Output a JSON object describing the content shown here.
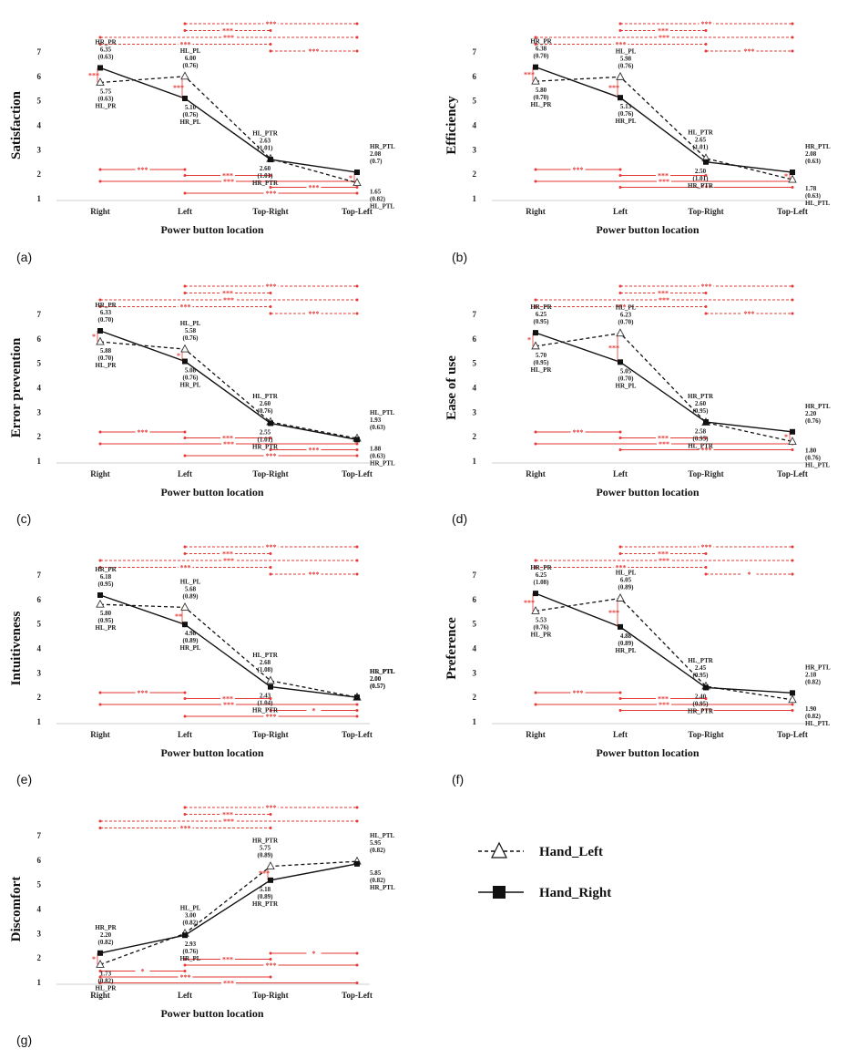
{
  "legend": {
    "hand_left": "Hand_Left",
    "hand_right": "Hand_Right"
  },
  "chart_data": [
    {
      "type": "line",
      "panel_label": "(a)",
      "ylabel": "Satisfaction",
      "xlabel": "Power button location",
      "categories": [
        "Right",
        "Left",
        "Top-Right",
        "Top-Left"
      ],
      "yticks": [
        "1",
        "2",
        "3",
        "4",
        "5",
        "6",
        "7"
      ],
      "ylim": [
        1,
        7
      ],
      "series": [
        {
          "name": "Hand_Left",
          "values": [
            5.75,
            6.0,
            2.63,
            1.65
          ],
          "sd": [
            "(0.63)",
            "(0.76)",
            "(1.01)",
            "(0.82)"
          ],
          "point_labels": [
            "HL_PR",
            "HL_PL",
            "HL_PTR",
            "HL_PTL"
          ],
          "value_labels": [
            "5.75",
            "6.00",
            "2.63",
            "1.65"
          ]
        },
        {
          "name": "Hand_Right",
          "values": [
            6.35,
            5.1,
            2.6,
            2.08
          ],
          "sd": [
            "(0.63)",
            "(0.76)",
            "(1.01)",
            "(0.7)"
          ],
          "point_labels": [
            "HR_PR",
            "HR_PL",
            "HR_PTR",
            "HR_PTL"
          ],
          "value_labels": [
            "6.35",
            "5.10",
            "2.60",
            "2.08"
          ]
        }
      ],
      "significance": {
        "top": [
          {
            "from": 1,
            "to": 3,
            "mark": "***",
            "style": "dashed"
          },
          {
            "from": 1,
            "to": 2,
            "mark": "***",
            "style": "dashed"
          },
          {
            "from": 0,
            "to": 3,
            "mark": "***",
            "style": "dashed"
          },
          {
            "from": 0,
            "to": 2,
            "mark": "***",
            "style": "dashed"
          },
          {
            "from": 2,
            "to": 3,
            "mark": "***",
            "style": "dashed"
          }
        ],
        "bottom": [
          {
            "from": 0,
            "to": 1,
            "mark": "***"
          },
          {
            "from": 1,
            "to": 2,
            "mark": "***"
          },
          {
            "from": 0,
            "to": 3,
            "mark": "***"
          },
          {
            "from": 2,
            "to": 3,
            "mark": "***"
          },
          {
            "from": 1,
            "to": 3,
            "mark": "***"
          }
        ],
        "within": [
          {
            "category": 0,
            "mark": "***"
          },
          {
            "category": 1,
            "mark": "***"
          },
          {
            "category": 3,
            "mark": "*"
          }
        ]
      }
    },
    {
      "type": "line",
      "panel_label": "(b)",
      "ylabel": "Efficiency",
      "xlabel": "Power button location",
      "categories": [
        "Right",
        "Left",
        "Top-Right",
        "Top-Left"
      ],
      "yticks": [
        "1",
        "2",
        "3",
        "4",
        "5",
        "6",
        "7"
      ],
      "ylim": [
        1,
        7
      ],
      "series": [
        {
          "name": "Hand_Left",
          "values": [
            5.8,
            5.98,
            2.65,
            1.78
          ],
          "sd": [
            "(0.70)",
            "(0.76)",
            "(1.01)",
            "(0.63)"
          ],
          "point_labels": [
            "HL_PR",
            "HL_PL",
            "HL_PTR",
            "HL_PTL"
          ],
          "value_labels": [
            "5.80",
            "5.98",
            "2.65",
            "1.78"
          ]
        },
        {
          "name": "Hand_Right",
          "values": [
            6.38,
            5.13,
            2.5,
            2.08
          ],
          "sd": [
            "(0.70)",
            "(0.76)",
            "(1.01)",
            "(0.63)"
          ],
          "point_labels": [
            "HR_PR",
            "HR_PL",
            "HR_PTR",
            "HR_PTL"
          ],
          "value_labels": [
            "6.38",
            "5.13",
            "2.50",
            "2.08"
          ]
        }
      ],
      "significance": {
        "top": [
          {
            "from": 1,
            "to": 3,
            "mark": "***",
            "style": "dashed"
          },
          {
            "from": 1,
            "to": 2,
            "mark": "***",
            "style": "dashed"
          },
          {
            "from": 0,
            "to": 3,
            "mark": "***",
            "style": "dashed"
          },
          {
            "from": 0,
            "to": 2,
            "mark": "***",
            "style": "dashed"
          },
          {
            "from": 2,
            "to": 3,
            "mark": "***",
            "style": "dashed"
          }
        ],
        "bottom": [
          {
            "from": 0,
            "to": 1,
            "mark": "***"
          },
          {
            "from": 1,
            "to": 2,
            "mark": "***"
          },
          {
            "from": 0,
            "to": 3,
            "mark": "***"
          },
          {
            "from": 1,
            "to": 3,
            "mark": "***"
          }
        ],
        "within": [
          {
            "category": 0,
            "mark": "***"
          },
          {
            "category": 1,
            "mark": "***"
          },
          {
            "category": 3,
            "mark": "*"
          }
        ]
      }
    },
    {
      "type": "line",
      "panel_label": "(c)",
      "ylabel": "Error prevention",
      "xlabel": "Power button location",
      "categories": [
        "Right",
        "Left",
        "Top-Right",
        "Top-Left"
      ],
      "yticks": [
        "1",
        "2",
        "3",
        "4",
        "5",
        "6",
        "7"
      ],
      "ylim": [
        1,
        7
      ],
      "series": [
        {
          "name": "Hand_Left",
          "values": [
            5.88,
            5.58,
            2.6,
            1.93
          ],
          "sd": [
            "(0.70)",
            "(0.76)",
            "(0.76)",
            "(0.63)"
          ],
          "point_labels": [
            "HL_PR",
            "HL_PL",
            "HL_PTR",
            "HL_PTL"
          ],
          "value_labels": [
            "5.88",
            "5.58",
            "2.60",
            "1.93"
          ]
        },
        {
          "name": "Hand_Right",
          "values": [
            6.33,
            5.08,
            2.55,
            1.88
          ],
          "sd": [
            "(0.70)",
            "(0.76)",
            "(1.01)",
            "(0.63)"
          ],
          "point_labels": [
            "HR_PR",
            "HR_PL",
            "HR_PTR",
            "HR_PTL"
          ],
          "value_labels": [
            "6.33",
            "5.08",
            "2.55",
            "1.88"
          ]
        }
      ],
      "significance": {
        "top": [
          {
            "from": 1,
            "to": 3,
            "mark": "***",
            "style": "dashed"
          },
          {
            "from": 1,
            "to": 2,
            "mark": "***",
            "style": "dashed"
          },
          {
            "from": 0,
            "to": 3,
            "mark": "***",
            "style": "dashed"
          },
          {
            "from": 0,
            "to": 2,
            "mark": "***",
            "style": "dashed"
          },
          {
            "from": 2,
            "to": 3,
            "mark": "***",
            "style": "dashed"
          }
        ],
        "bottom": [
          {
            "from": 0,
            "to": 1,
            "mark": "***"
          },
          {
            "from": 1,
            "to": 2,
            "mark": "***"
          },
          {
            "from": 0,
            "to": 3,
            "mark": "***"
          },
          {
            "from": 2,
            "to": 3,
            "mark": "***"
          },
          {
            "from": 1,
            "to": 3,
            "mark": "***"
          }
        ],
        "within": [
          {
            "category": 0,
            "mark": "*"
          },
          {
            "category": 1,
            "mark": "*"
          }
        ]
      }
    },
    {
      "type": "line",
      "panel_label": "(d)",
      "ylabel": "Ease of use",
      "xlabel": "Power button location",
      "categories": [
        "Right",
        "Left",
        "Top-Right",
        "Top-Left"
      ],
      "yticks": [
        "1",
        "2",
        "3",
        "4",
        "5",
        "6",
        "7"
      ],
      "ylim": [
        1,
        7
      ],
      "series": [
        {
          "name": "Hand_Left",
          "values": [
            5.7,
            6.23,
            2.58,
            1.8
          ],
          "sd": [
            "(0.95)",
            "(0.70)",
            "(0.95)",
            "(0.76)"
          ],
          "point_labels": [
            "HL_PR",
            "HL_PL",
            "HL_PTR",
            "HL_PTL"
          ],
          "value_labels": [
            "5.70",
            "6.23",
            "2.58",
            "1.80"
          ]
        },
        {
          "name": "Hand_Right",
          "values": [
            6.25,
            5.05,
            2.6,
            2.2
          ],
          "sd": [
            "(0.95)",
            "(0.70)",
            "(0.95)",
            "(0.76)"
          ],
          "point_labels": [
            "HR_PR",
            "HR_PL",
            "HR_PTR",
            "HR_PTL"
          ],
          "value_labels": [
            "6.25",
            "5.05",
            "2.60",
            "2.20"
          ]
        }
      ],
      "significance": {
        "top": [
          {
            "from": 1,
            "to": 3,
            "mark": "***",
            "style": "dashed"
          },
          {
            "from": 1,
            "to": 2,
            "mark": "***",
            "style": "dashed"
          },
          {
            "from": 0,
            "to": 3,
            "mark": "***",
            "style": "dashed"
          },
          {
            "from": 0,
            "to": 2,
            "mark": "***",
            "style": "dashed"
          },
          {
            "from": 2,
            "to": 3,
            "mark": "***",
            "style": "dashed"
          }
        ],
        "bottom": [
          {
            "from": 0,
            "to": 1,
            "mark": "***"
          },
          {
            "from": 1,
            "to": 2,
            "mark": "***"
          },
          {
            "from": 0,
            "to": 3,
            "mark": "***"
          },
          {
            "from": 1,
            "to": 3,
            "mark": "***"
          }
        ],
        "within": [
          {
            "category": 0,
            "mark": "*"
          },
          {
            "category": 1,
            "mark": "***"
          },
          {
            "category": 3,
            "mark": "*"
          }
        ]
      }
    },
    {
      "type": "line",
      "panel_label": "(e)",
      "ylabel": "Intuitiveness",
      "xlabel": "Power button location",
      "categories": [
        "Right",
        "Left",
        "Top-Right",
        "Top-Left"
      ],
      "yticks": [
        "1",
        "2",
        "3",
        "4",
        "5",
        "6",
        "7"
      ],
      "ylim": [
        1,
        7
      ],
      "series": [
        {
          "name": "Hand_Left",
          "values": [
            5.8,
            5.68,
            2.68,
            2.0
          ],
          "sd": [
            "(0.95)",
            "(0.89)",
            "(1.08)",
            "(0.57)"
          ],
          "point_labels": [
            "HL_PR",
            "HL_PL",
            "HL_PTR",
            "HL_PTL"
          ],
          "value_labels": [
            "5.80",
            "5.68",
            "2.68",
            "2.00"
          ]
        },
        {
          "name": "Hand_Right",
          "values": [
            6.18,
            4.98,
            2.43,
            2.0
          ],
          "sd": [
            "(0.95)",
            "(0.89)",
            "(1.04)",
            "(0.57)"
          ],
          "point_labels": [
            "HR_PR",
            "HR_PL",
            "HR_PTR",
            "HR_PTL"
          ],
          "value_labels": [
            "6.18",
            "4.98",
            "2.43",
            "2.00"
          ]
        }
      ],
      "significance": {
        "top": [
          {
            "from": 1,
            "to": 3,
            "mark": "***",
            "style": "dashed"
          },
          {
            "from": 1,
            "to": 2,
            "mark": "***",
            "style": "dashed"
          },
          {
            "from": 0,
            "to": 3,
            "mark": "***",
            "style": "dashed"
          },
          {
            "from": 0,
            "to": 2,
            "mark": "***",
            "style": "dashed"
          },
          {
            "from": 2,
            "to": 3,
            "mark": "***",
            "style": "dashed"
          }
        ],
        "bottom": [
          {
            "from": 0,
            "to": 1,
            "mark": "***"
          },
          {
            "from": 1,
            "to": 2,
            "mark": "***"
          },
          {
            "from": 0,
            "to": 3,
            "mark": "***"
          },
          {
            "from": 2,
            "to": 3,
            "mark": "*"
          },
          {
            "from": 1,
            "to": 3,
            "mark": "***"
          }
        ],
        "within": [
          {
            "category": 1,
            "mark": "**"
          }
        ]
      }
    },
    {
      "type": "line",
      "panel_label": "(f)",
      "ylabel": "Preference",
      "xlabel": "Power button location",
      "categories": [
        "Right",
        "Left",
        "Top-Right",
        "Top-Left"
      ],
      "yticks": [
        "1",
        "2",
        "3",
        "4",
        "5",
        "6",
        "7"
      ],
      "ylim": [
        1,
        7
      ],
      "series": [
        {
          "name": "Hand_Left",
          "values": [
            5.53,
            6.05,
            2.45,
            1.9
          ],
          "sd": [
            "(0.76)",
            "(0.89)",
            "(0.95)",
            "(0.82)"
          ],
          "point_labels": [
            "HL_PR",
            "HL_PL",
            "HL_PTR",
            "HL_PTL"
          ],
          "value_labels": [
            "5.53",
            "6.05",
            "2.45",
            "1.90"
          ]
        },
        {
          "name": "Hand_Right",
          "values": [
            6.25,
            4.88,
            2.4,
            2.18
          ],
          "sd": [
            "(1.08)",
            "(0.89)",
            "(0.95)",
            "(0.82)"
          ],
          "point_labels": [
            "HR_PR",
            "HR_PL",
            "HR_PTR",
            "HR_PTL"
          ],
          "value_labels": [
            "6.25",
            "4.88",
            "2.40",
            "2.18"
          ]
        }
      ],
      "significance": {
        "top": [
          {
            "from": 1,
            "to": 3,
            "mark": "***",
            "style": "dashed"
          },
          {
            "from": 1,
            "to": 2,
            "mark": "***",
            "style": "dashed"
          },
          {
            "from": 0,
            "to": 3,
            "mark": "***",
            "style": "dashed"
          },
          {
            "from": 0,
            "to": 2,
            "mark": "***",
            "style": "dashed"
          },
          {
            "from": 2,
            "to": 3,
            "mark": "*",
            "style": "dashed"
          }
        ],
        "bottom": [
          {
            "from": 0,
            "to": 1,
            "mark": "***"
          },
          {
            "from": 1,
            "to": 2,
            "mark": "***"
          },
          {
            "from": 0,
            "to": 3,
            "mark": "***"
          },
          {
            "from": 1,
            "to": 3,
            "mark": "***"
          }
        ],
        "within": [
          {
            "category": 0,
            "mark": "***"
          },
          {
            "category": 1,
            "mark": "***"
          }
        ]
      }
    },
    {
      "type": "line",
      "panel_label": "(g)",
      "ylabel": "Discomfort",
      "xlabel": "Power button location",
      "categories": [
        "Right",
        "Left",
        "Top-Right",
        "Top-Left"
      ],
      "yticks": [
        "1",
        "2",
        "3",
        "4",
        "5",
        "6",
        "7"
      ],
      "ylim": [
        1,
        7
      ],
      "series": [
        {
          "name": "Hand_Left",
          "values": [
            1.73,
            3.0,
            5.75,
            5.95
          ],
          "sd": [
            "(0.82)",
            "(0.82)",
            "(0.89)",
            "(0.82)"
          ],
          "point_labels": [
            "HL_PR",
            "HL_PL",
            "HR_PTR",
            "HL_PTL"
          ],
          "value_labels": [
            "1.73",
            "3.00",
            "5.75",
            "5.95"
          ]
        },
        {
          "name": "Hand_Right",
          "values": [
            2.2,
            2.93,
            5.18,
            5.85
          ],
          "sd": [
            "(0.82)",
            "(0.76)",
            "(0.89)",
            "(0.82)"
          ],
          "point_labels": [
            "HR_PR",
            "HR_PL",
            "HR_PTR",
            "HR_PTL"
          ],
          "value_labels": [
            "2.20",
            "2.93",
            "5.18",
            "5.85"
          ]
        }
      ],
      "significance": {
        "top": [
          {
            "from": 1,
            "to": 3,
            "mark": "***",
            "style": "dashed"
          },
          {
            "from": 1,
            "to": 2,
            "mark": "***",
            "style": "dashed"
          },
          {
            "from": 0,
            "to": 3,
            "mark": "***",
            "style": "dashed"
          },
          {
            "from": 0,
            "to": 2,
            "mark": "***",
            "style": "dashed"
          }
        ],
        "bottom": [
          {
            "from": 2,
            "to": 3,
            "mark": "*"
          },
          {
            "from": 1,
            "to": 2,
            "mark": "***"
          },
          {
            "from": 1,
            "to": 3,
            "mark": "***"
          },
          {
            "from": 0,
            "to": 1,
            "mark": "*"
          },
          {
            "from": 0,
            "to": 2,
            "mark": "***"
          },
          {
            "from": 0,
            "to": 3,
            "mark": "***"
          }
        ],
        "within": [
          {
            "category": 0,
            "mark": "*"
          },
          {
            "category": 2,
            "mark": "***"
          }
        ]
      }
    }
  ]
}
